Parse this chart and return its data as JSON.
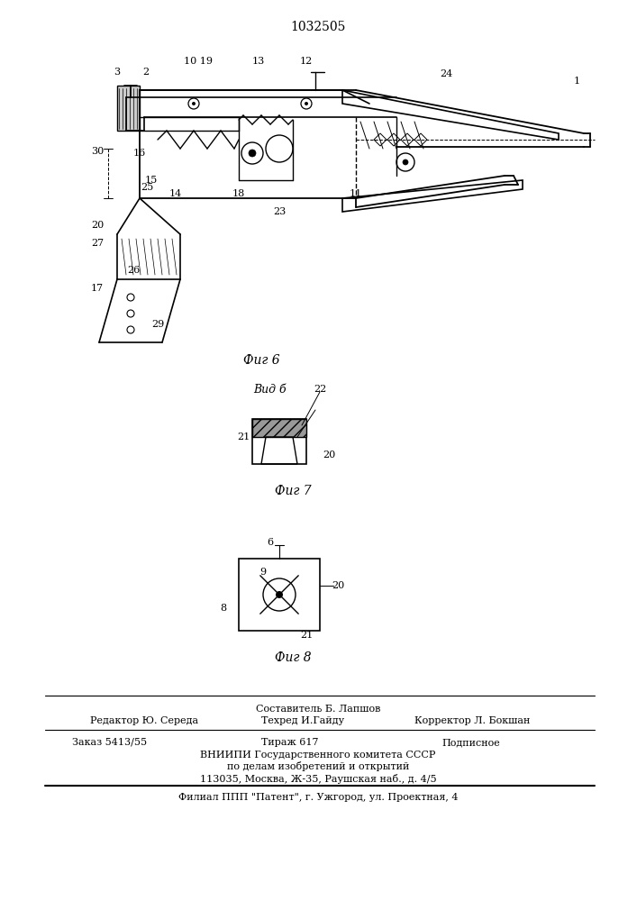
{
  "title": "1032505",
  "fig6_label": "Фиг 6",
  "fig7_label": "Фиг 7",
  "fig8_label": "Фиг 8",
  "vid_b_label": "Вид б",
  "footer_line1_center": "Составитель Б. Лапшов",
  "footer_line2_left": "Редактор Ю. Середа",
  "footer_line2_mid": "Техред И.Гайду",
  "footer_line2_right": "Корректор Л. Бокшан",
  "footer_line3_left": "Заказ 5413/55",
  "footer_line3_mid": "Тираж 617",
  "footer_line3_right": "Подписное",
  "footer_line4": "ВНИИПИ Государственного комитета СССР",
  "footer_line5": "по делам изобретений и открытий",
  "footer_line6": "113035, Москва, Ж-35, Раушская наб., д. 4/5",
  "footer_line7": "Филиал ППП \"Патент\", г. Ужгород, ул. Проектная, 4",
  "bg_color": "#ffffff",
  "line_color": "#000000",
  "text_color": "#000000"
}
